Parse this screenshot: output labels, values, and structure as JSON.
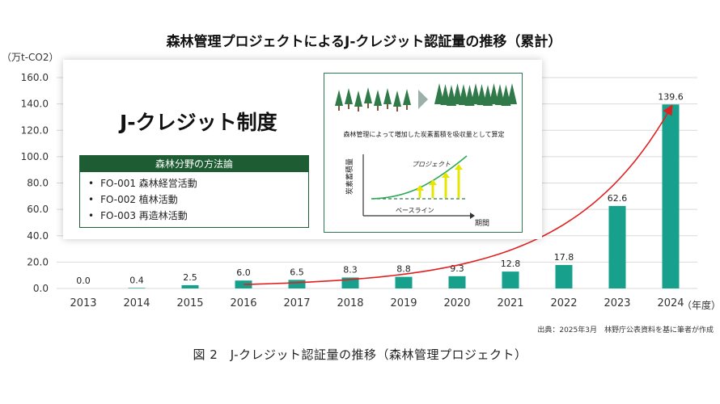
{
  "chart_data": {
    "type": "bar",
    "title": "森林管理プロジェクトによるJ-クレジット認証量の推移（累計）",
    "ylabel": "（万t-CO2）",
    "xlabel": "（年度）",
    "categories": [
      "2013",
      "2014",
      "2015",
      "2016",
      "2017",
      "2018",
      "2019",
      "2020",
      "2021",
      "2022",
      "2023",
      "2024"
    ],
    "values": [
      0.0,
      0.4,
      2.5,
      6.0,
      6.5,
      8.3,
      8.8,
      9.3,
      12.8,
      17.8,
      62.6,
      139.6
    ],
    "value_labels": [
      "0.0",
      "0.4",
      "2.5",
      "6.0",
      "6.5",
      "8.3",
      "8.8",
      "9.3",
      "12.8",
      "17.8",
      "62.6",
      "139.6"
    ],
    "ylim": [
      0,
      160
    ],
    "yticks": [
      "0.0",
      "20.0",
      "40.0",
      "60.0",
      "80.0",
      "100.0",
      "120.0",
      "140.0",
      "160.0"
    ],
    "grid": true,
    "bar_color": "#17a08c",
    "trend_color": "#e02020"
  },
  "source_note": "出典：2025年3月　林野庁公表資料を基に筆者が作成",
  "figure_caption": "図 2　J-クレジット認証量の推移（森林管理プロジェクト）",
  "inset": {
    "title": "J-クレジット制度",
    "method_header": "森林分野の方法論",
    "methods": [
      "FO-001 森林経営活動",
      "FO-002 植林活動",
      "FO-003 再造林活動"
    ],
    "concept_text": "森林管理によって増加した炭素蓄積を吸収量として算定",
    "label_project": "プロジェクト",
    "label_baseline": "ベースライン",
    "label_period": "期間",
    "label_stock": "炭素蓄積量"
  },
  "colors": {
    "header_green": "#1e5c34",
    "tree_green": "#2f7a48",
    "arrow_gray": "#9ab0a8"
  }
}
